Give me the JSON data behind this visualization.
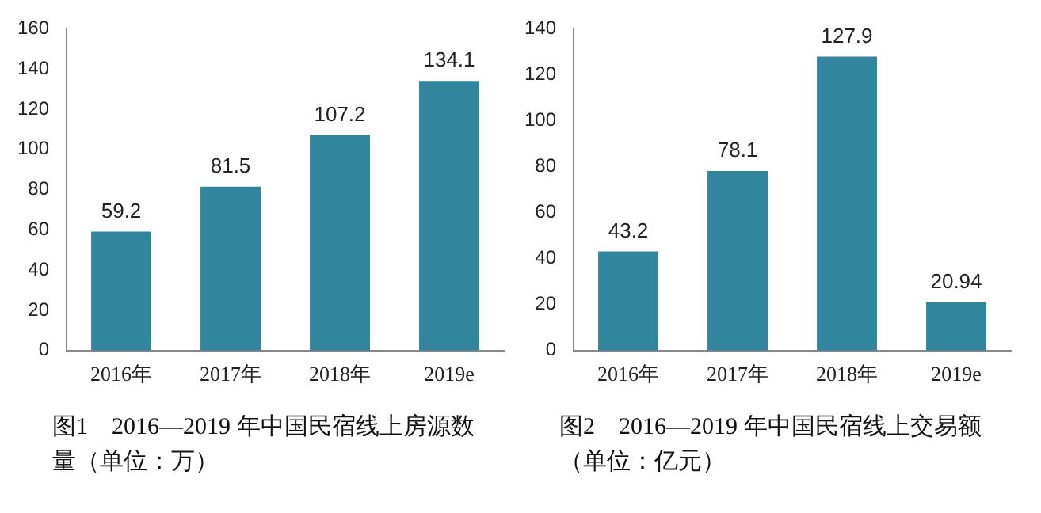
{
  "chart_data": [
    {
      "type": "bar",
      "title": "图1    2016—2019 年中国民宿线上房源数量（单位：万）",
      "categories": [
        "2016年",
        "2017年",
        "2018年",
        "2019e"
      ],
      "values": [
        59.2,
        81.5,
        107.2,
        134.1
      ],
      "color": "#31859c",
      "ylim": [
        0,
        160
      ],
      "yticks": [
        0,
        20,
        40,
        60,
        80,
        100,
        120,
        140,
        160
      ],
      "grid": false,
      "data_labels": true
    },
    {
      "type": "bar",
      "title": "图2    2016—2019 年中国民宿线上交易额（单位：亿元）",
      "categories": [
        "2016年",
        "2017年",
        "2018年",
        "2019e"
      ],
      "values": [
        43.2,
        78.1,
        127.9,
        20.94
      ],
      "color": "#31859c",
      "ylim": [
        0,
        140
      ],
      "yticks": [
        0,
        20,
        40,
        60,
        80,
        100,
        120,
        140
      ],
      "grid": false,
      "data_labels": true
    }
  ]
}
